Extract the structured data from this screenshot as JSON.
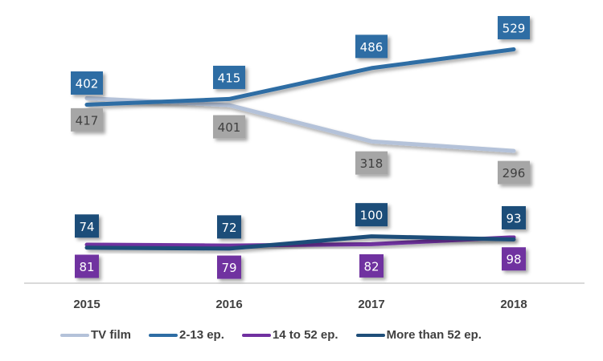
{
  "chart_data": {
    "type": "line",
    "title": "",
    "xlabel": "",
    "ylabel": "",
    "categories": [
      "2015",
      "2016",
      "2017",
      "2018"
    ],
    "ylim": [
      0,
      560
    ],
    "grid": false,
    "legend_position": "bottom",
    "series": [
      {
        "name": "TV film",
        "color": "#b4c2d9",
        "label_color": "#a6a6a6",
        "label_text_color": "#404040",
        "label_position": "below",
        "values": [
          417,
          401,
          318,
          296
        ]
      },
      {
        "name": "2-13 ep.",
        "color": "#2e6da4",
        "label_color": "#2e6da4",
        "label_text_color": "#ffffff",
        "label_position": "above",
        "values": [
          402,
          415,
          486,
          529
        ]
      },
      {
        "name": "14 to 52 ep.",
        "color": "#7030a0",
        "label_color": "#7030a0",
        "label_text_color": "#ffffff",
        "label_position": "below",
        "values": [
          81,
          79,
          82,
          98
        ]
      },
      {
        "name": "More than 52 ep.",
        "color": "#1f4e79",
        "label_color": "#1f4e79",
        "label_text_color": "#ffffff",
        "label_position": "above",
        "values": [
          74,
          72,
          100,
          93
        ]
      }
    ]
  }
}
